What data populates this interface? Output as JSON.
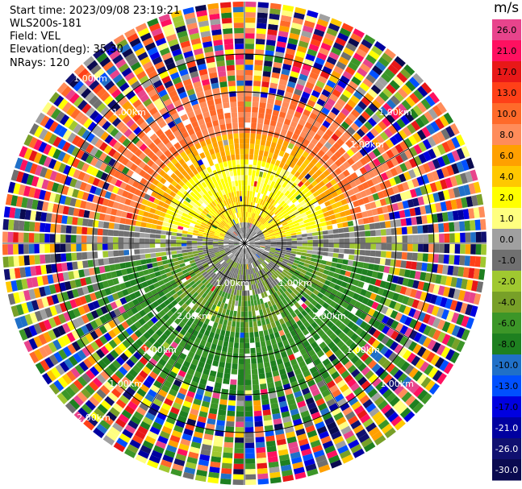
{
  "header": {
    "start_time": "Start time: 2023/09/08 23:19:21",
    "instrument": "WLS200s-181",
    "field": "Field: VEL",
    "elevation": "Elevation(deg): 35.30",
    "nrays": "NRays: 120"
  },
  "colorbar": {
    "unit": "m/s",
    "bins": [
      {
        "label": "26.0",
        "color": "#e8448c"
      },
      {
        "label": "21.0",
        "color": "#ff1060"
      },
      {
        "label": "17.0",
        "color": "#e81818"
      },
      {
        "label": "13.0",
        "color": "#ff4018"
      },
      {
        "label": "10.0",
        "color": "#ff6a2a"
      },
      {
        "label": "8.0",
        "color": "#ff8c5a"
      },
      {
        "label": "6.0",
        "color": "#ffa000"
      },
      {
        "label": "4.0",
        "color": "#ffc800"
      },
      {
        "label": "2.0",
        "color": "#ffff00"
      },
      {
        "label": "1.0",
        "color": "#ffff80"
      },
      {
        "label": "0.0",
        "color": "#a0a0a0"
      },
      {
        "label": "-1.0",
        "color": "#707070"
      },
      {
        "label": "-2.0",
        "color": "#a0c830"
      },
      {
        "label": "-4.0",
        "color": "#78a028"
      },
      {
        "label": "-6.0",
        "color": "#3c9628"
      },
      {
        "label": "-8.0",
        "color": "#1e8020"
      },
      {
        "label": "-10.0",
        "color": "#2070c8"
      },
      {
        "label": "-13.0",
        "color": "#0050ff"
      },
      {
        "label": "-17.0",
        "color": "#0000e0"
      },
      {
        "label": "-21.0",
        "color": "#0000a0"
      },
      {
        "label": "-26.0",
        "color": "#101070"
      },
      {
        "label": "-30.0",
        "color": "#0a0a50"
      }
    ]
  },
  "chart_data": {
    "type": "heatmap",
    "projection": "polar PPI scan",
    "field": "VEL",
    "units": "m/s",
    "nrays": 120,
    "range_rings_km": [
      0.5,
      1.0,
      1.5,
      2.0,
      2.5
    ],
    "ring_labels": [
      "1.00km",
      "2.00km"
    ],
    "spoke_angles_deg": [
      0,
      30,
      60,
      90,
      120,
      150,
      180,
      210,
      240,
      270,
      300,
      330
    ],
    "pattern": {
      "north_sector": "positive velocities 2 to 17 m/s (yellow to red)",
      "south_sector": "negative velocities -2 to -10 m/s (greens)",
      "outer_ranges": "noisy, all bins"
    }
  }
}
